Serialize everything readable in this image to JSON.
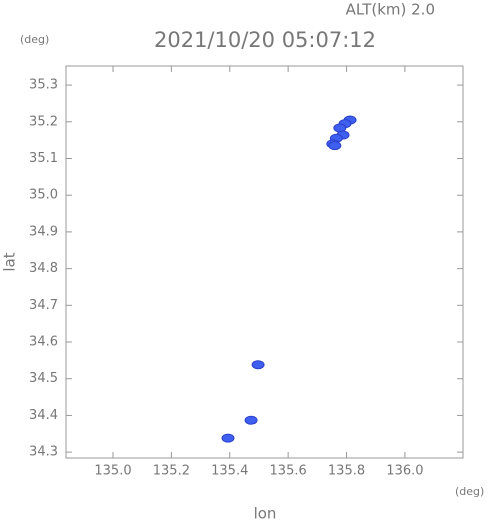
{
  "chart_data": {
    "type": "scatter",
    "title": "2021/10/20 05:07:12",
    "subtitle": "ALT(km) 2.0",
    "y_unit": "(deg)",
    "x_unit": "(deg)",
    "x_label": "lon",
    "y_label": "lat",
    "series": [
      {
        "color": "#3f5ff0",
        "x": [
          135.812,
          135.795,
          135.777,
          135.788,
          135.765,
          135.753,
          135.76,
          135.497,
          135.473,
          135.394
        ],
        "y": [
          35.205,
          35.195,
          35.183,
          35.164,
          35.155,
          35.14,
          35.135,
          34.538,
          34.387,
          34.338
        ]
      }
    ],
    "xlim": [
      134.839,
      136.199
    ],
    "ylim": [
      34.284,
      35.352
    ],
    "xticks": [
      {
        "value": 135,
        "label": "135.0"
      },
      135.2,
      135.4,
      135.6,
      135.8,
      {
        "value": 136,
        "label": "136.0"
      }
    ],
    "yticks": [
      34.3,
      34.4,
      34.5,
      34.6,
      34.7,
      34.8,
      34.9,
      {
        "value": 35,
        "label": "35.0"
      },
      35.1,
      35.2,
      35.3
    ]
  }
}
